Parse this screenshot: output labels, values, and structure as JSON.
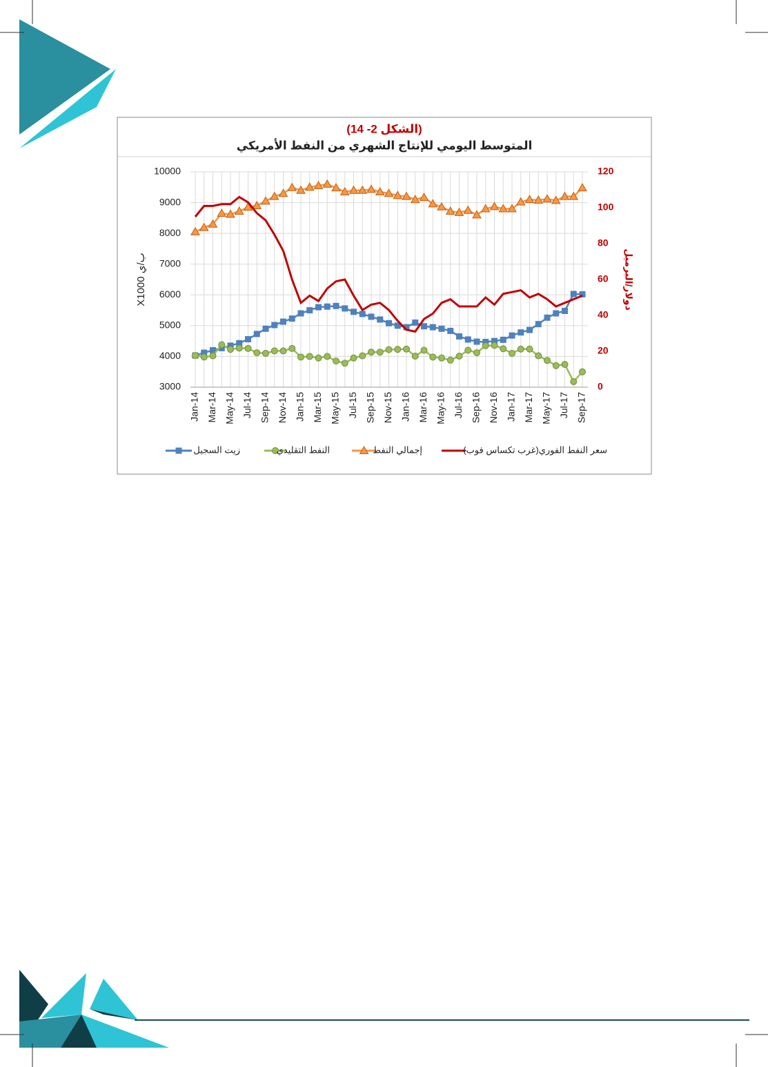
{
  "chart_data": {
    "type": "line",
    "figure_label": "(الشكل 2- 14)",
    "title": "المتوسط اليومي للإنتاج الشهري من النفط الأمريكي",
    "y_label": "X1000 ب/ي",
    "y2_label": "دولار/البرميل",
    "categories": [
      "Jan-14",
      null,
      "Mar-14",
      null,
      "May-14",
      null,
      "Jul-14",
      null,
      "Sep-14",
      null,
      "Nov-14",
      null,
      "Jan-15",
      null,
      "Mar-15",
      null,
      "May-15",
      null,
      "Jul-15",
      null,
      "Sep-15",
      null,
      "Nov-15",
      null,
      "Jan-16",
      null,
      "Mar-16",
      null,
      "May-16",
      null,
      "Jul-16",
      null,
      "Sep-16",
      null,
      "Nov-16",
      null,
      "Jan-17",
      null,
      "Mar-17",
      null,
      "May-17",
      null,
      "Jul-17",
      null,
      "Sep-17"
    ],
    "series": [
      {
        "name": "زيت السجيل",
        "color": "#4f81bd",
        "marker": "square",
        "axis": "y",
        "values": [
          4030,
          4120,
          4200,
          4270,
          4350,
          4430,
          4560,
          4730,
          4900,
          5020,
          5130,
          5230,
          5400,
          5500,
          5600,
          5620,
          5640,
          5560,
          5450,
          5380,
          5290,
          5200,
          5080,
          5000,
          4950,
          5100,
          4980,
          4950,
          4900,
          4830,
          4650,
          4550,
          4480,
          4470,
          4500,
          4540,
          4680,
          4780,
          4860,
          5050,
          5260,
          5400,
          5480,
          6030,
          6020
        ]
      },
      {
        "name": "النفط التقليدي",
        "color": "#9bbb59",
        "marker": "circle",
        "axis": "y",
        "values": [
          4030,
          3980,
          4020,
          4380,
          4230,
          4270,
          4260,
          4120,
          4100,
          4180,
          4180,
          4260,
          3980,
          4000,
          3950,
          4000,
          3850,
          3780,
          3950,
          4020,
          4140,
          4140,
          4220,
          4230,
          4240,
          4010,
          4200,
          3980,
          3950,
          3880,
          4010,
          4200,
          4120,
          4350,
          4360,
          4250,
          4100,
          4240,
          4240,
          4020,
          3870,
          3700,
          3740,
          3180,
          3500
        ]
      },
      {
        "name": "إجمالي النفط",
        "color": "#f79646",
        "marker": "triangle",
        "axis": "y",
        "values": [
          8050,
          8190,
          8300,
          8650,
          8620,
          8720,
          8850,
          8900,
          9050,
          9200,
          9300,
          9490,
          9400,
          9500,
          9550,
          9600,
          9480,
          9350,
          9400,
          9400,
          9430,
          9350,
          9300,
          9230,
          9200,
          9100,
          9170,
          8960,
          8860,
          8720,
          8680,
          8750,
          8600,
          8800,
          8870,
          8800,
          8800,
          9020,
          9100,
          9080,
          9120,
          9070,
          9200,
          9200,
          9480
        ]
      },
      {
        "name": "سعر النفط الفوري(غرب تكساس فوب)",
        "color": "#c00000",
        "marker": "none",
        "axis": "y2",
        "values": [
          95,
          101,
          101,
          102,
          102,
          106,
          103,
          97,
          93,
          85,
          76,
          60,
          47,
          51,
          48,
          55,
          59,
          60,
          51,
          43,
          46,
          47,
          43,
          37,
          32,
          31,
          38,
          41,
          47,
          49,
          45,
          45,
          45,
          50,
          46,
          52,
          53,
          54,
          50,
          52,
          49,
          45,
          47,
          49,
          51
        ]
      }
    ],
    "ylim": [
      3000,
      10000
    ],
    "yticks": [
      3000,
      4000,
      5000,
      6000,
      7000,
      8000,
      9000,
      10000
    ],
    "y2lim": [
      0,
      120
    ],
    "y2ticks": [
      0,
      20,
      40,
      60,
      80,
      100,
      120
    ],
    "y2_color": "#c00000",
    "title_color": "#c00000",
    "grid": true,
    "legend": "bottom"
  }
}
